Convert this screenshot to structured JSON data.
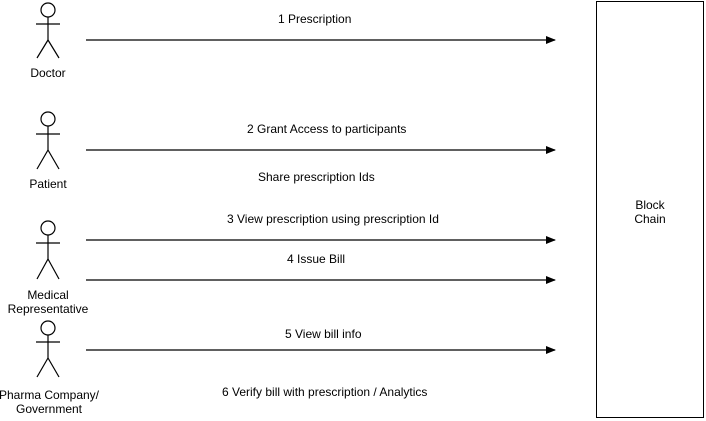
{
  "actors": [
    {
      "name": "Doctor"
    },
    {
      "name": "Patient"
    },
    {
      "name": "Medical\nRepresentative"
    },
    {
      "name": "Pharma Company/\nGovernment"
    }
  ],
  "block": {
    "line1": "Block",
    "line2": "Chain"
  },
  "messages": [
    {
      "label": "1 Prescription"
    },
    {
      "label": "2 Grant Access to participants"
    },
    {
      "label": "Share prescription Ids"
    },
    {
      "label": "3 View prescription using prescription Id"
    },
    {
      "label": "4 Issue Bill"
    },
    {
      "label": "5 View bill info"
    },
    {
      "label": "6 Verify bill with prescription / Analytics"
    }
  ]
}
